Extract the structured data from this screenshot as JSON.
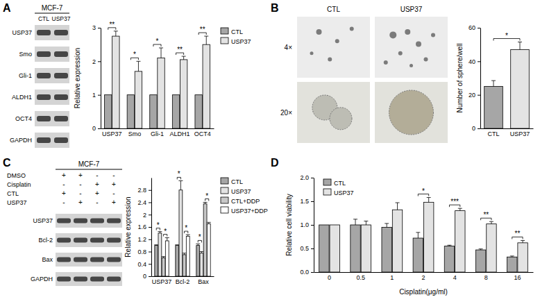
{
  "chart_data": [
    {
      "type": "bar",
      "ylabel": "Relative expression",
      "categories": [
        "USP37",
        "Smo",
        "Gli-1",
        "ALDH1",
        "OCT4"
      ],
      "series": [
        {
          "name": "CTL",
          "color": "#a6a6a6",
          "values": [
            1,
            1,
            1,
            1,
            1
          ],
          "errors": [
            0,
            0,
            0,
            0,
            0
          ]
        },
        {
          "name": "USP37",
          "color": "#e3e3e3",
          "values": [
            2.75,
            1.7,
            2.1,
            2.05,
            2.5
          ],
          "errors": [
            0.15,
            0.3,
            0.3,
            0.1,
            0.25
          ]
        }
      ],
      "significance": [
        "**",
        "*",
        "*",
        "**",
        "**"
      ],
      "ylim": [
        0,
        3
      ],
      "yticks": [
        0,
        1,
        2,
        3
      ],
      "legend": "right"
    },
    {
      "type": "bar",
      "ylabel": "Number of sphere/well",
      "categories": [
        "CTL",
        "USP37"
      ],
      "values": [
        25,
        47
      ],
      "errors": [
        3.5,
        4.5
      ],
      "colors": [
        "#a6a6a6",
        "#e3e3e3"
      ],
      "significance": "*",
      "ylim": [
        0,
        60
      ],
      "yticks": [
        0,
        20,
        40,
        60
      ]
    },
    {
      "type": "bar",
      "ylabel": "Relative expression",
      "categories": [
        "USP37",
        "Bcl-2",
        "Bax"
      ],
      "series": [
        {
          "name": "CTL",
          "color": "#a6a6a6",
          "values": [
            1,
            1,
            1
          ],
          "errors": [
            0.02,
            0.02,
            0.05
          ]
        },
        {
          "name": "USP37",
          "color": "#e3e3e3",
          "values": [
            1.4,
            2.8,
            0.75
          ],
          "errors": [
            0.05,
            0.3,
            0.05
          ]
        },
        {
          "name": "CTL+DDP",
          "color": "#c8c8c8",
          "values": [
            0.6,
            0.7,
            2.35
          ],
          "errors": [
            0.04,
            0.05,
            0.05
          ]
        },
        {
          "name": "USP37+DDP",
          "color": "#ffffff",
          "values": [
            1.15,
            1.3,
            1.7
          ],
          "errors": [
            0.1,
            0.05,
            0.05
          ]
        }
      ],
      "significance": [
        [
          "*",
          "*"
        ],
        [
          "*",
          "*"
        ],
        [
          "*",
          "*"
        ]
      ],
      "ylim": [
        0,
        3.2
      ],
      "yticks": [
        0,
        0.4,
        0.8,
        1.2,
        1.6,
        2,
        2.4,
        2.8
      ],
      "legend": "right"
    },
    {
      "type": "bar",
      "ylabel": "Relative cell viability",
      "xlabel": "Cisplatin(μg/ml)",
      "categories": [
        "0",
        "0.5",
        "1",
        "2",
        "4",
        "8",
        "16"
      ],
      "series": [
        {
          "name": "CTL",
          "color": "#a6a6a6",
          "values": [
            1,
            1,
            0.95,
            0.72,
            0.55,
            0.47,
            0.32
          ],
          "errors": [
            0,
            0.12,
            0.08,
            0.12,
            0.02,
            0.02,
            0.02
          ]
        },
        {
          "name": "USP37",
          "color": "#e3e3e3",
          "values": [
            1,
            1,
            1.32,
            1.48,
            1.3,
            1.02,
            0.62
          ],
          "errors": [
            0,
            0.08,
            0.15,
            0.1,
            0.05,
            0.05,
            0.05
          ]
        }
      ],
      "significance": [
        null,
        null,
        null,
        "*",
        "***",
        "**",
        "**"
      ],
      "ylim": [
        0,
        2
      ],
      "yticks": [
        {
          "value": 0,
          "label": "0.0"
        },
        {
          "value": 0.5,
          "label": "0.5"
        },
        {
          "value": 1,
          "label": "1.0"
        },
        {
          "value": 1.5,
          "label": "1.5"
        },
        {
          "value": 2,
          "label": "2.0"
        }
      ],
      "legend": "top-left"
    }
  ],
  "figure": {
    "panel_labels": [
      "A",
      "B",
      "C",
      "D"
    ],
    "blot_a": {
      "cell_line": "MCF-7",
      "lanes": [
        "CTL",
        "USP37"
      ],
      "proteins": [
        "USP37",
        "Smo",
        "Gli-1",
        "ALDH1",
        "OCT4",
        "GAPDH"
      ]
    },
    "images_b": {
      "columns": [
        "CTL",
        "USP37"
      ],
      "rows": [
        "4×",
        "20×"
      ]
    },
    "blot_c": {
      "cell_line": "MCF-7",
      "treatments": [
        {
          "name": "DMSO",
          "signs": [
            "+",
            "+",
            "-",
            "-"
          ]
        },
        {
          "name": "Cisplatin",
          "signs": [
            "-",
            "-",
            "+",
            "+"
          ]
        },
        {
          "name": "CTL",
          "signs": [
            "+",
            "-",
            "+",
            "-"
          ]
        },
        {
          "name": "USP37",
          "signs": [
            "-",
            "+",
            "-",
            "+"
          ]
        }
      ],
      "proteins": [
        "USP37",
        "Bcl-2",
        "Bax",
        "GAPDH"
      ]
    }
  }
}
